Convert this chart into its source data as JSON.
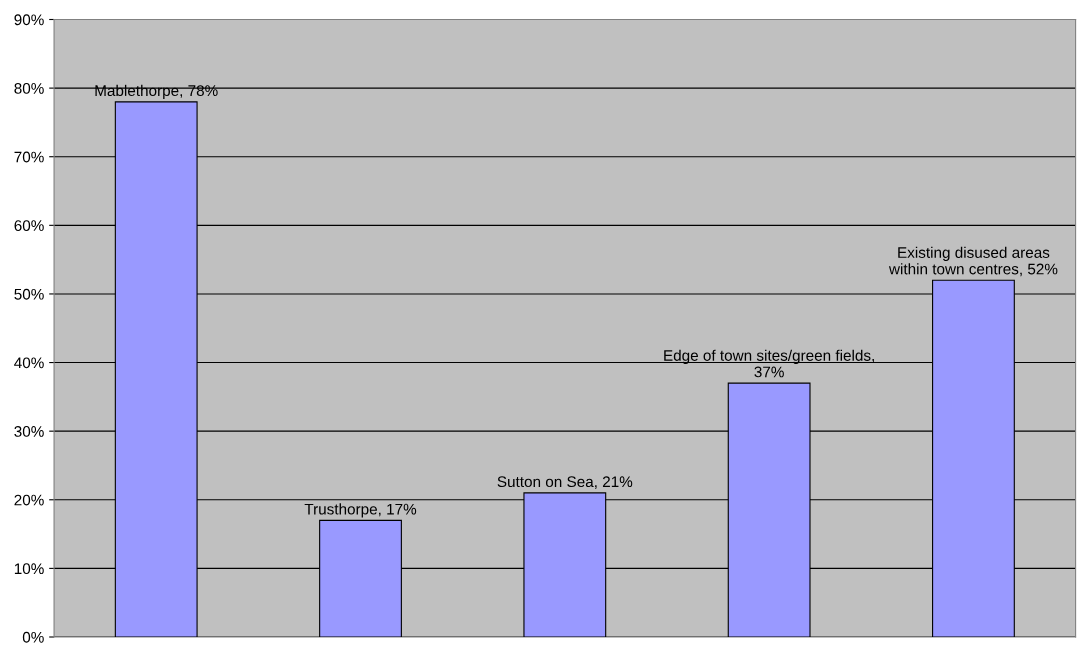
{
  "chart_data": {
    "type": "bar",
    "categories": [
      null,
      null,
      null,
      null,
      null
    ],
    "values": [
      78,
      17,
      21,
      37,
      52
    ],
    "value_labels": [
      "Mablethorpe, 78%",
      "Trusthorpe, 17%",
      "Sutton on Sea, 21%",
      "Edge of town sites/green fields,\n37%",
      "Existing disused areas\nwithin town centres, 52%"
    ],
    "color": "#9999ff",
    "ylim": [
      0,
      90
    ],
    "yticks": [
      {
        "value": 0,
        "label": "0%"
      },
      {
        "value": 10,
        "label": "10%"
      },
      {
        "value": 20,
        "label": "20%"
      },
      {
        "value": 30,
        "label": "30%"
      },
      {
        "value": 40,
        "label": "40%"
      },
      {
        "value": 50,
        "label": "50%"
      },
      {
        "value": 60,
        "label": "60%"
      },
      {
        "value": 70,
        "label": "70%"
      },
      {
        "value": 80,
        "label": "80%"
      },
      {
        "value": 90,
        "label": "90%"
      }
    ],
    "grid": "y",
    "legend": false
  }
}
